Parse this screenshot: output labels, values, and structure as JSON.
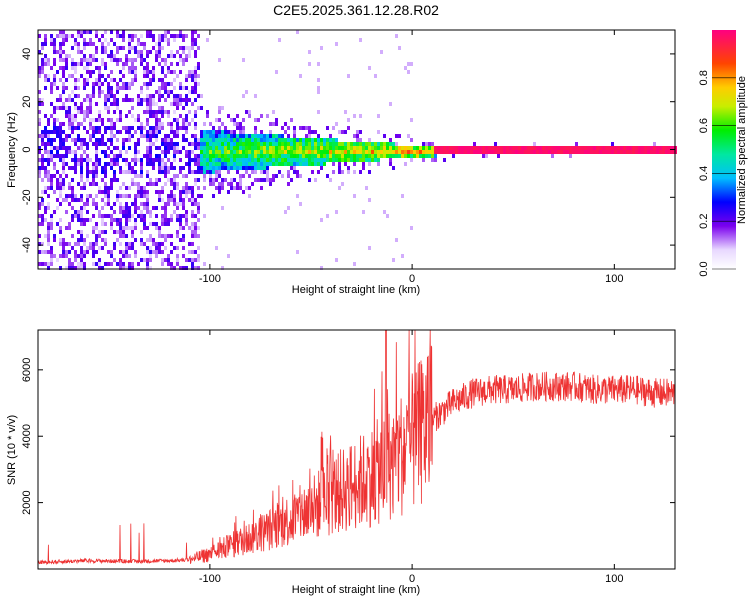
{
  "title": "C2E5.2025.361.12.28.R02",
  "chart_data": [
    {
      "type": "heatmap",
      "xlabel": "Height of straight line (km)",
      "ylabel": "Frequency (Hz)",
      "xlim": [
        -185,
        130
      ],
      "ylim": [
        -50,
        50
      ],
      "xticks": [
        -100,
        0,
        100
      ],
      "yticks": [
        -40,
        -20,
        0,
        20,
        40
      ],
      "colorbar": {
        "label": "Normalized spectral amplitude",
        "range": [
          0,
          1
        ],
        "ticks": [
          "0.0",
          "0.2",
          "0.4",
          "0.6",
          "0.8"
        ]
      },
      "features": [
        {
          "name": "noise-band",
          "x": [
            -185,
            -105
          ],
          "freq_spread": 50,
          "amplitude": 0.15
        },
        {
          "name": "coherent-signal",
          "x": [
            -105,
            130
          ],
          "center_freq": 0,
          "amplitude_range": [
            0.3,
            1.0
          ]
        }
      ]
    },
    {
      "type": "line",
      "xlabel": "Height of straight line (km)",
      "ylabel": "SNR (10 * v/v)",
      "xlim": [
        -185,
        130
      ],
      "ylim": [
        0,
        7200
      ],
      "xticks": [
        -100,
        0,
        100
      ],
      "yticks": [
        2000,
        4000,
        6000
      ],
      "color": "#ee3333",
      "series": [
        {
          "name": "SNR",
          "x": [
            -185,
            -160,
            -140,
            -120,
            -110,
            -100,
            -90,
            -80,
            -70,
            -60,
            -50,
            -40,
            -30,
            -20,
            -10,
            0,
            10,
            20,
            30,
            40,
            50,
            60,
            70,
            80,
            90,
            100,
            110,
            120,
            130
          ],
          "values": [
            200,
            250,
            230,
            250,
            280,
            450,
            700,
            950,
            1200,
            1500,
            1800,
            2200,
            2500,
            2800,
            3200,
            3800,
            4500,
            5000,
            5300,
            5400,
            5400,
            5500,
            5500,
            5500,
            5400,
            5400,
            5400,
            5300,
            5300
          ]
        }
      ]
    }
  ]
}
